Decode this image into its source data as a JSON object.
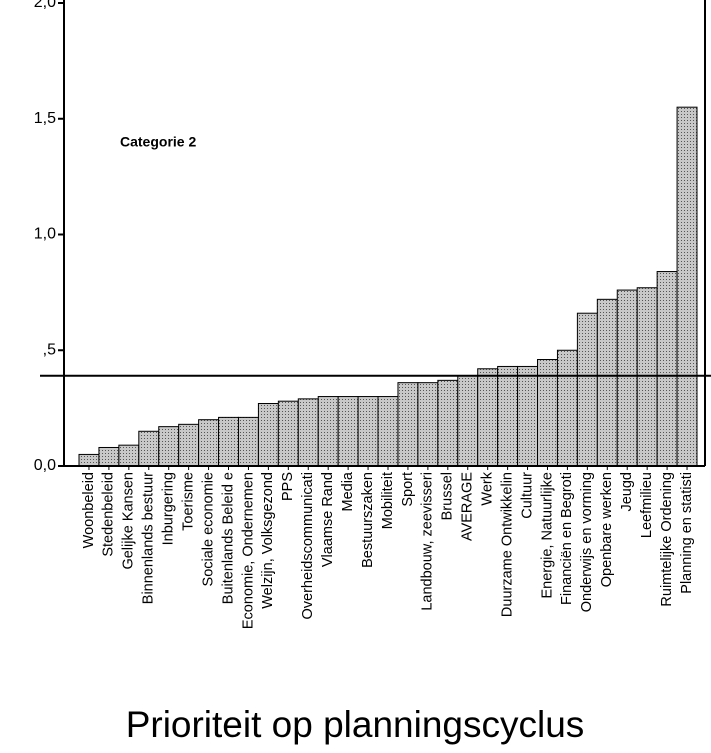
{
  "chart_data": {
    "type": "bar",
    "title": "Prioriteit op planningscyclus",
    "annotation": "Categorie 2",
    "categories": [
      "Woonbeleid",
      "Stedenbeleid",
      "Gelijke Kansen",
      "Binnenlands bestuur",
      "Inburgering",
      "Toerisme",
      "Sociale economie",
      "Buitenlands Beleid e",
      "Economie, Ondernemen",
      "Welzijn, Volksgezond",
      "PPS",
      "Overheidscommunicati",
      "Vlaamse Rand",
      "Media",
      "Bestuurszaken",
      "Mobiliteit",
      "Sport",
      "Landbouw, zeevisseri",
      "Brussel",
      "AVERAGE",
      "Werk",
      "Duurzame Ontwikkelin",
      "Cultuur",
      "Energie, Natuurlijke",
      "Financiën en Begroti",
      "Onderwijs en vorming",
      "Openbare werken",
      "Jeugd",
      "Leefmilieu",
      "Ruimtelijke Ordening",
      "Planning en statisti"
    ],
    "values": [
      0.05,
      0.08,
      0.09,
      0.15,
      0.17,
      0.18,
      0.2,
      0.21,
      0.21,
      0.27,
      0.28,
      0.29,
      0.3,
      0.3,
      0.3,
      0.3,
      0.36,
      0.36,
      0.37,
      0.39,
      0.42,
      0.43,
      0.43,
      0.46,
      0.5,
      0.66,
      0.72,
      0.76,
      0.77,
      0.84,
      1.55
    ],
    "reference_line": 0.39,
    "color": "#b8b8b8",
    "ylim": [
      0,
      2
    ],
    "yticks": [
      {
        "value": 0,
        "label": "0,0"
      },
      {
        "value": 0.5,
        "label": ",5"
      },
      {
        "value": 1,
        "label": "1,0"
      },
      {
        "value": 1.5,
        "label": "1,5"
      },
      {
        "value": 2,
        "label": "2,0"
      }
    ]
  }
}
